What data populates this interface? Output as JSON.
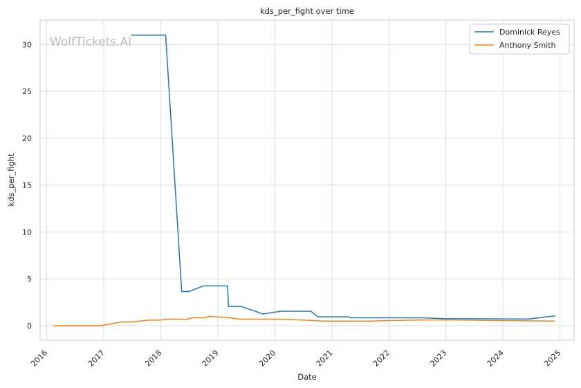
{
  "chart_data": {
    "type": "line",
    "title": "kds_per_fight over time",
    "xlabel": "Date",
    "ylabel": "kds_per_fight",
    "watermark": "WolfTickets.AI",
    "x_range": [
      "2015-11-20",
      "2025-04-01"
    ],
    "ylim": [
      -1.55,
      32.6
    ],
    "x_ticks": [
      {
        "date": "2016-01-01",
        "label": "2016"
      },
      {
        "date": "2017-01-01",
        "label": "2017"
      },
      {
        "date": "2018-01-01",
        "label": "2018"
      },
      {
        "date": "2019-01-01",
        "label": "2019"
      },
      {
        "date": "2020-01-01",
        "label": "2020"
      },
      {
        "date": "2021-01-01",
        "label": "2021"
      },
      {
        "date": "2022-01-01",
        "label": "2022"
      },
      {
        "date": "2023-01-01",
        "label": "2023"
      },
      {
        "date": "2024-01-01",
        "label": "2024"
      },
      {
        "date": "2025-01-01",
        "label": "2025"
      }
    ],
    "y_ticks": [
      {
        "value": 0,
        "label": "0"
      },
      {
        "value": 5,
        "label": "5"
      },
      {
        "value": 10,
        "label": "10"
      },
      {
        "value": 15,
        "label": "15"
      },
      {
        "value": 20,
        "label": "20"
      },
      {
        "value": 25,
        "label": "25"
      },
      {
        "value": 30,
        "label": "30"
      }
    ],
    "grid": true,
    "legend_position": "top-right",
    "series": [
      {
        "name": "Dominick Reyes",
        "color": "#1f77b4",
        "points": [
          [
            "2017-06-25",
            31.0
          ],
          [
            "2018-02-01",
            31.0
          ],
          [
            "2018-05-15",
            3.65
          ],
          [
            "2018-07-01",
            3.65
          ],
          [
            "2018-09-30",
            4.25
          ],
          [
            "2019-03-05",
            4.25
          ],
          [
            "2019-03-10",
            2.05
          ],
          [
            "2019-06-01",
            2.05
          ],
          [
            "2019-10-18",
            1.25
          ],
          [
            "2020-02-08",
            1.55
          ],
          [
            "2020-08-20",
            1.55
          ],
          [
            "2020-10-03",
            0.95
          ],
          [
            "2021-04-15",
            0.95
          ],
          [
            "2021-05-01",
            0.85
          ],
          [
            "2022-08-01",
            0.85
          ],
          [
            "2022-12-20",
            0.75
          ],
          [
            "2024-06-15",
            0.72
          ],
          [
            "2024-12-01",
            1.05
          ]
        ]
      },
      {
        "name": "Anthony Smith",
        "color": "#ff7f0e",
        "points": [
          [
            "2016-02-10",
            0.0
          ],
          [
            "2016-12-10",
            0.0
          ],
          [
            "2017-04-22",
            0.4
          ],
          [
            "2017-06-15",
            0.4
          ],
          [
            "2017-10-15",
            0.6
          ],
          [
            "2017-12-25",
            0.6
          ],
          [
            "2018-02-01",
            0.7
          ],
          [
            "2018-05-20",
            0.7
          ],
          [
            "2018-06-05",
            0.65
          ],
          [
            "2018-07-22",
            0.85
          ],
          [
            "2018-10-20",
            0.85
          ],
          [
            "2018-11-01",
            1.0
          ],
          [
            "2019-03-01",
            0.88
          ],
          [
            "2019-05-20",
            0.7
          ],
          [
            "2020-01-01",
            0.7
          ],
          [
            "2020-04-01",
            0.68
          ],
          [
            "2020-11-10",
            0.5
          ],
          [
            "2021-09-01",
            0.5
          ],
          [
            "2022-01-01",
            0.55
          ],
          [
            "2022-07-25",
            0.62
          ],
          [
            "2023-03-01",
            0.62
          ],
          [
            "2023-11-25",
            0.55
          ],
          [
            "2024-11-30",
            0.5
          ]
        ]
      }
    ]
  }
}
